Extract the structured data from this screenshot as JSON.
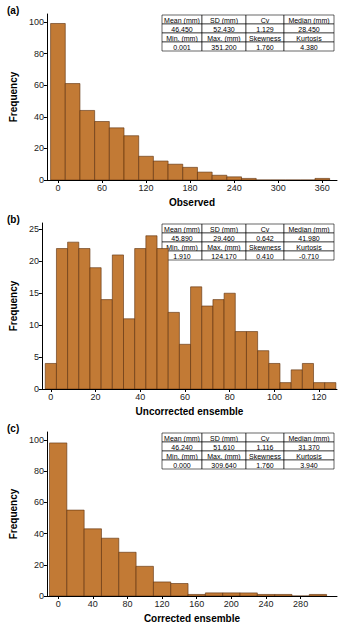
{
  "chart_data": [
    {
      "type": "histogram",
      "title": "(a)",
      "x_label": "Observed",
      "y_label": "Frequency",
      "bins": [
        -10,
        10,
        30,
        50,
        70,
        90,
        110,
        130,
        150,
        170,
        190,
        210,
        230,
        250,
        270,
        290,
        310,
        330,
        350,
        370
      ],
      "counts": [
        99,
        61,
        44,
        37,
        33,
        28,
        15,
        12,
        10,
        8,
        5,
        3,
        2,
        1,
        0,
        0,
        0,
        0,
        1
      ],
      "color": "#c27a35",
      "xlim": [
        -15,
        380
      ],
      "xticks": [
        0,
        60,
        120,
        180,
        240,
        300,
        360
      ],
      "ylim": [
        0,
        105
      ],
      "yticks": [
        0,
        20,
        40,
        60,
        80,
        100
      ],
      "grid": false,
      "annotations": {
        "table": [
          [
            "Mean (mm)",
            "SD (mm)",
            "Cv",
            "Median (mm)"
          ],
          [
            "46.450",
            "52.430",
            "1.129",
            "28.450"
          ],
          [
            "Min. (mm)",
            "Max. (mm)",
            "Skewness",
            "Kurtosis"
          ],
          [
            "0.001",
            "351.200",
            "1.760",
            "4.380"
          ]
        ]
      }
    },
    {
      "type": "histogram",
      "title": "(b)",
      "x_label": "Uncorrected ensemble",
      "y_label": "Frequency",
      "bins": [
        -2.5,
        2.5,
        7.5,
        12.5,
        17.5,
        22.5,
        27.5,
        32.5,
        37.5,
        42.5,
        47.5,
        52.5,
        57.5,
        62.5,
        67.5,
        72.5,
        77.5,
        82.5,
        87.5,
        92.5,
        97.5,
        102.5,
        107.5,
        112.5,
        117.5,
        122.5,
        127.5
      ],
      "counts": [
        4,
        22,
        23,
        22,
        19,
        14,
        21,
        11,
        22,
        24,
        22,
        12,
        7,
        16,
        13,
        14,
        15,
        9,
        9,
        6,
        4,
        1,
        3,
        4,
        1,
        1
      ],
      "color": "#c27a35",
      "xlim": [
        -4,
        128
      ],
      "xticks": [
        0,
        20,
        40,
        60,
        80,
        100,
        120
      ],
      "ylim": [
        0,
        26
      ],
      "yticks": [
        0,
        5,
        10,
        15,
        20,
        25
      ],
      "grid": false,
      "annotations": {
        "table": [
          [
            "Mean (mm)",
            "SD (mm)",
            "Cv",
            "Median (mm)"
          ],
          [
            "45.890",
            "29.460",
            "0.642",
            "41.980"
          ],
          [
            "Min. (mm)",
            "Max. (mm)",
            "Skewness",
            "Kurtosis"
          ],
          [
            "1.910",
            "124.170",
            "0.410",
            "-0.710"
          ]
        ]
      }
    },
    {
      "type": "histogram",
      "title": "(c)",
      "x_label": "Corrected ensemble",
      "y_label": "Frequency",
      "bins": [
        -10,
        10,
        30,
        50,
        70,
        90,
        110,
        130,
        150,
        170,
        190,
        210,
        230,
        250,
        270,
        290,
        310
      ],
      "counts": [
        98,
        55,
        43,
        37,
        28,
        19,
        9,
        8,
        1,
        2,
        2,
        2,
        1,
        1,
        0,
        1
      ],
      "color": "#c27a35",
      "xlim": [
        -13,
        322
      ],
      "xticks": [
        0,
        40,
        80,
        120,
        160,
        200,
        240,
        280
      ],
      "ylim": [
        0,
        105
      ],
      "yticks": [
        0,
        20,
        40,
        60,
        80,
        100
      ],
      "grid": false,
      "annotations": {
        "table": [
          [
            "Mean (mm)",
            "SD (mm)",
            "Cv",
            "Median (mm)"
          ],
          [
            "46.240",
            "51.610",
            "1.116",
            "31.370"
          ],
          [
            "Min. (mm)",
            "Max. (mm)",
            "Skewness",
            "Kurtosis"
          ],
          [
            "0.000",
            "309.640",
            "1.760",
            "3.940"
          ]
        ]
      }
    }
  ]
}
